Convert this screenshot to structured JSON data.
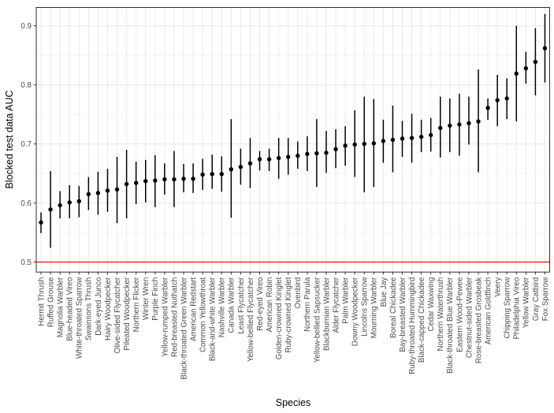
{
  "chart_data": {
    "type": "pointrange",
    "xlabel": "Species",
    "ylabel": "Blocked test data AUC",
    "yticks": [
      0.5,
      0.6,
      0.7,
      0.8,
      0.9
    ],
    "ylim": [
      0.483,
      0.931
    ],
    "grid": "on",
    "legend": "none",
    "reference_line": {
      "y": 0.5,
      "color": "#f02b1d"
    },
    "colors": {
      "point": "#000000",
      "error_bar": "#000000",
      "grid_major": "#e8e8e8",
      "grid_minor": "#f3f3f3",
      "panel_border": "#2f2f2f",
      "tick_label": "#4d4d4d",
      "axis_title": "#000000"
    },
    "species": [
      {
        "label": "Hermit Thrush",
        "auc": 0.567,
        "lo": 0.549,
        "hi": 0.584
      },
      {
        "label": "Ruffed Grouse",
        "auc": 0.589,
        "lo": 0.524,
        "hi": 0.654
      },
      {
        "label": "Magnolia Warbler",
        "auc": 0.596,
        "lo": 0.574,
        "hi": 0.62
      },
      {
        "label": "Blue-headed Vireo",
        "auc": 0.601,
        "lo": 0.574,
        "hi": 0.63
      },
      {
        "label": "White-throated Sparrow",
        "auc": 0.603,
        "lo": 0.576,
        "hi": 0.629
      },
      {
        "label": "Swainsons Thrush",
        "auc": 0.615,
        "lo": 0.588,
        "hi": 0.644
      },
      {
        "label": "Dark-eyed Junco",
        "auc": 0.617,
        "lo": 0.58,
        "hi": 0.653
      },
      {
        "label": "Hairy Woodpecker",
        "auc": 0.621,
        "lo": 0.585,
        "hi": 0.658
      },
      {
        "label": "Olive-sided Flycatcher",
        "auc": 0.623,
        "lo": 0.566,
        "hi": 0.678
      },
      {
        "label": "Pileated Woodpecker",
        "auc": 0.632,
        "lo": 0.574,
        "hi": 0.69
      },
      {
        "label": "Northern Flicker",
        "auc": 0.634,
        "lo": 0.598,
        "hi": 0.67
      },
      {
        "label": "Winter Wren",
        "auc": 0.637,
        "lo": 0.601,
        "hi": 0.673
      },
      {
        "label": "Purple Finch",
        "auc": 0.638,
        "lo": 0.593,
        "hi": 0.681
      },
      {
        "label": "Yellow-rumped Warbler",
        "auc": 0.64,
        "lo": 0.614,
        "hi": 0.667
      },
      {
        "label": "Red-breasted Nuthatch",
        "auc": 0.64,
        "lo": 0.593,
        "hi": 0.688
      },
      {
        "label": "Black-throated Green Warbler",
        "auc": 0.641,
        "lo": 0.618,
        "hi": 0.666
      },
      {
        "label": "American Redstart",
        "auc": 0.641,
        "lo": 0.617,
        "hi": 0.667
      },
      {
        "label": "Common Yellowthroat",
        "auc": 0.648,
        "lo": 0.622,
        "hi": 0.675
      },
      {
        "label": "Black-and-white Warbler",
        "auc": 0.649,
        "lo": 0.624,
        "hi": 0.682
      },
      {
        "label": "Nashville Warbler",
        "auc": 0.649,
        "lo": 0.619,
        "hi": 0.679
      },
      {
        "label": "Canada Warbler",
        "auc": 0.657,
        "lo": 0.575,
        "hi": 0.742
      },
      {
        "label": "Least Flycatcher",
        "auc": 0.661,
        "lo": 0.631,
        "hi": 0.692
      },
      {
        "label": "Yellow-bellied Flycatcher",
        "auc": 0.667,
        "lo": 0.625,
        "hi": 0.71
      },
      {
        "label": "Red-eyed Vireo",
        "auc": 0.674,
        "lo": 0.655,
        "hi": 0.688
      },
      {
        "label": "American Robin",
        "auc": 0.674,
        "lo": 0.654,
        "hi": 0.692
      },
      {
        "label": "Golden-crowned Kinglet",
        "auc": 0.676,
        "lo": 0.641,
        "hi": 0.71
      },
      {
        "label": "Ruby-crowned Kinglet",
        "auc": 0.678,
        "lo": 0.648,
        "hi": 0.71
      },
      {
        "label": "Ovenbird",
        "auc": 0.68,
        "lo": 0.658,
        "hi": 0.704
      },
      {
        "label": "Northern Parula",
        "auc": 0.683,
        "lo": 0.654,
        "hi": 0.713
      },
      {
        "label": "Yellow-bellied Sapsucker",
        "auc": 0.684,
        "lo": 0.627,
        "hi": 0.742
      },
      {
        "label": "Blackburnian Warbler",
        "auc": 0.685,
        "lo": 0.651,
        "hi": 0.722
      },
      {
        "label": "Alder Flycatcher",
        "auc": 0.691,
        "lo": 0.659,
        "hi": 0.725
      },
      {
        "label": "Palm Warbler",
        "auc": 0.697,
        "lo": 0.663,
        "hi": 0.73
      },
      {
        "label": "Downy Woodpecker",
        "auc": 0.699,
        "lo": 0.644,
        "hi": 0.757
      },
      {
        "label": "Lincolns Sparrow",
        "auc": 0.7,
        "lo": 0.618,
        "hi": 0.78
      },
      {
        "label": "Mourning Warbler",
        "auc": 0.701,
        "lo": 0.627,
        "hi": 0.776
      },
      {
        "label": "Blue Jay",
        "auc": 0.705,
        "lo": 0.668,
        "hi": 0.741
      },
      {
        "label": "Boreal Chickadee",
        "auc": 0.707,
        "lo": 0.652,
        "hi": 0.765
      },
      {
        "label": "Bay-breasted Warbler",
        "auc": 0.709,
        "lo": 0.678,
        "hi": 0.739
      },
      {
        "label": "Ruby-throated Hummingbird",
        "auc": 0.71,
        "lo": 0.668,
        "hi": 0.751
      },
      {
        "label": "Black-capped Chickadee",
        "auc": 0.712,
        "lo": 0.686,
        "hi": 0.741
      },
      {
        "label": "Cedar Waxwing",
        "auc": 0.715,
        "lo": 0.687,
        "hi": 0.744
      },
      {
        "label": "Northern Waterthrush",
        "auc": 0.727,
        "lo": 0.677,
        "hi": 0.78
      },
      {
        "label": "Black-throated Blue Warbler",
        "auc": 0.731,
        "lo": 0.686,
        "hi": 0.777
      },
      {
        "label": "Eastern Wood-Pewee",
        "auc": 0.733,
        "lo": 0.68,
        "hi": 0.785
      },
      {
        "label": "Chestnut-sided Warbler",
        "auc": 0.735,
        "lo": 0.699,
        "hi": 0.78
      },
      {
        "label": "Rose-breasted Grosbeak",
        "auc": 0.738,
        "lo": 0.652,
        "hi": 0.826
      },
      {
        "label": "American Goldfinch",
        "auc": 0.761,
        "lo": 0.741,
        "hi": 0.777
      },
      {
        "label": "Veery",
        "auc": 0.774,
        "lo": 0.73,
        "hi": 0.817
      },
      {
        "label": "Chipping Sparrow",
        "auc": 0.777,
        "lo": 0.742,
        "hi": 0.811
      },
      {
        "label": "Philadelphia Vireo",
        "auc": 0.819,
        "lo": 0.738,
        "hi": 0.9
      },
      {
        "label": "Yellow Warbler",
        "auc": 0.828,
        "lo": 0.802,
        "hi": 0.856
      },
      {
        "label": "Gray Catbird",
        "auc": 0.839,
        "lo": 0.782,
        "hi": 0.896
      },
      {
        "label": "Fox Sparrow",
        "auc": 0.862,
        "lo": 0.804,
        "hi": 0.92
      }
    ]
  }
}
